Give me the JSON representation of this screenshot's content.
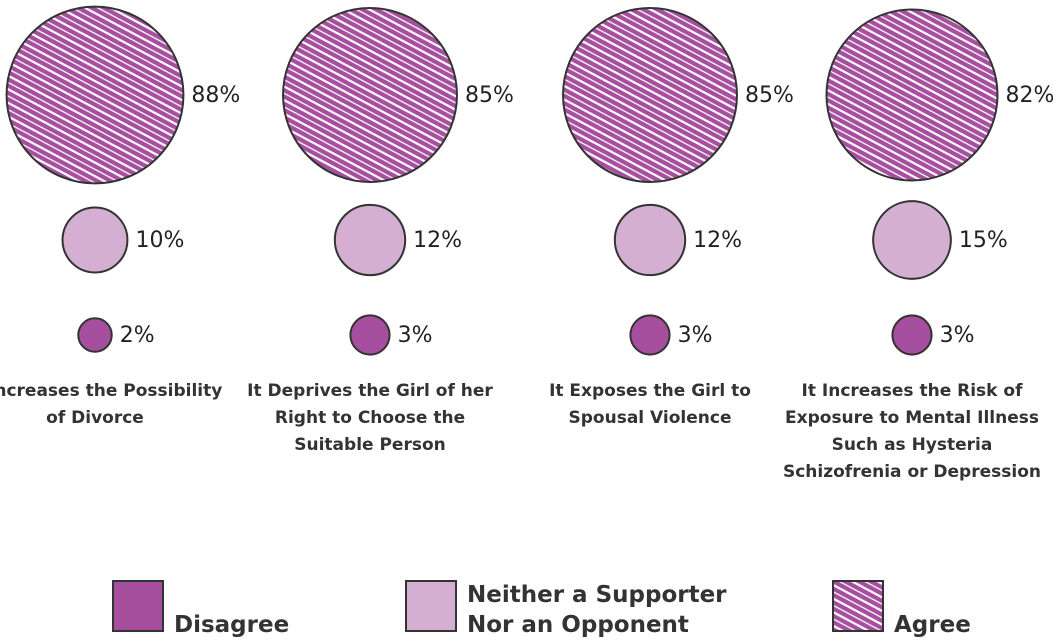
{
  "chart_data": {
    "type": "bubble",
    "categories": [
      "It Increases the Possibility of Divorce",
      "It Deprives the Girl of her Right to Choose the Suitable Person",
      "It Exposes the Girl to Spousal Violence",
      "It Increases the Risk of Exposure to Mental Illness Such as Hysteria Schizofrenia or Depression"
    ],
    "series": [
      {
        "name": "Agree",
        "color": "#a64f9f",
        "pattern": "hatch",
        "values": [
          88,
          85,
          85,
          82
        ],
        "value_labels": [
          "88%",
          "85%",
          "85%",
          "82%"
        ]
      },
      {
        "name": "Neither a Supporter Nor an Opponent",
        "color": "#d4afd1",
        "values": [
          10,
          12,
          12,
          15
        ],
        "value_labels": [
          "10%",
          "12%",
          "12%",
          "15%"
        ]
      },
      {
        "name": "Disagree",
        "color": "#a64f9f",
        "values": [
          2,
          3,
          3,
          3
        ],
        "value_labels": [
          "2%",
          "3%",
          "3%",
          "3%"
        ]
      }
    ],
    "legend_order": [
      "Disagree",
      "Neither a Supporter Nor an Opponent",
      "Agree"
    ]
  }
}
